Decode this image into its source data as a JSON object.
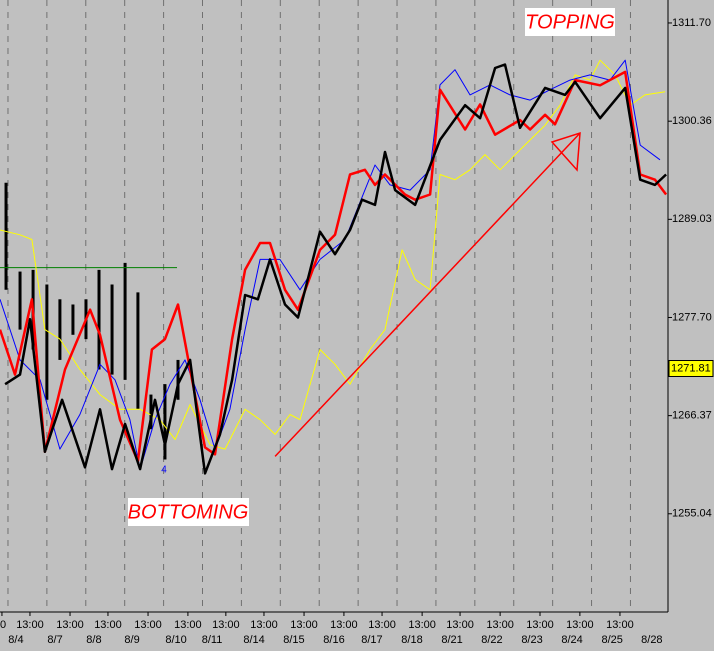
{
  "chart_data": {
    "type": "line",
    "annotations": [
      "TOPPING",
      "BOTTOMING"
    ],
    "marker_label": "4",
    "last_price": 1271.81,
    "xlim": [
      -0.41,
      33.93
    ],
    "ylim": [
      1243.7,
      1314.35
    ],
    "yticks": [
      {
        "value": 1311.7,
        "label": "1311.70"
      },
      {
        "value": 1300.36,
        "label": "1300.36"
      },
      {
        "value": 1289.03,
        "label": "1289.03"
      },
      {
        "value": 1277.7,
        "label": "1277.70"
      },
      {
        "value": 1266.37,
        "label": "1266.37"
      },
      {
        "value": 1255.04,
        "label": "1255.04"
      }
    ],
    "xticks": [
      {
        "value": -0.31,
        "label": "0"
      },
      {
        "value": 1.13,
        "label": "13:00"
      },
      {
        "value": 3.19,
        "label": "13:00"
      },
      {
        "value": 5.14,
        "label": "13:00"
      },
      {
        "value": 7.2,
        "label": "13:00"
      },
      {
        "value": 9.25,
        "label": "13:00"
      },
      {
        "value": 11.2,
        "label": "13:00"
      },
      {
        "value": 13.16,
        "label": "13:00"
      },
      {
        "value": 15.22,
        "label": "13:00"
      },
      {
        "value": 17.27,
        "label": "13:00"
      },
      {
        "value": 19.23,
        "label": "13:00"
      },
      {
        "value": 21.29,
        "label": "13:00"
      },
      {
        "value": 23.24,
        "label": "13:00"
      },
      {
        "value": 25.3,
        "label": "13:00"
      },
      {
        "value": 27.35,
        "label": "13:00"
      },
      {
        "value": 29.4,
        "label": "13:00"
      },
      {
        "value": 31.46,
        "label": "13:00"
      }
    ],
    "date_ticks": [
      {
        "value": 0.41,
        "label": "8/4"
      },
      {
        "value": 2.42,
        "label": "8/7"
      },
      {
        "value": 4.42,
        "label": "8/8"
      },
      {
        "value": 6.38,
        "label": "8/9"
      },
      {
        "value": 8.64,
        "label": "8/10"
      },
      {
        "value": 10.49,
        "label": "8/11"
      },
      {
        "value": 12.65,
        "label": "8/14"
      },
      {
        "value": 14.7,
        "label": "8/15"
      },
      {
        "value": 16.76,
        "label": "8/16"
      },
      {
        "value": 18.71,
        "label": "8/17"
      },
      {
        "value": 20.77,
        "label": "8/18"
      },
      {
        "value": 22.83,
        "label": "8/21"
      },
      {
        "value": 24.88,
        "label": "8/22"
      },
      {
        "value": 26.94,
        "label": "8/23"
      },
      {
        "value": 29.0,
        "label": "8/24"
      },
      {
        "value": 31.06,
        "label": "8/25"
      },
      {
        "value": 33.1,
        "label": "8/28"
      }
    ],
    "xgrid": [
      0,
      2,
      4,
      6,
      8,
      10,
      12,
      14,
      16,
      18,
      20,
      22,
      24,
      26,
      28,
      30,
      32
    ],
    "series": [
      {
        "color": "#ffff00",
        "line_width": 1,
        "x": [
          -0.41,
          0.62,
          1.23,
          1.9,
          2.67,
          3.7,
          4.73,
          5.76,
          6.79,
          7.81,
          8.59,
          9.36,
          10.39,
          11.16,
          12.19,
          12.96,
          13.73,
          14.5,
          15.01,
          16.04,
          16.81,
          17.58,
          18.61,
          19.38,
          20.26,
          20.93,
          21.7,
          22.21,
          22.98,
          23.75,
          24.52,
          25.3,
          26.32,
          27.61,
          28.38,
          29.16,
          29.92,
          30.44,
          31.21,
          31.98,
          32.75,
          33.78
        ],
        "values": [
          1287.8,
          1287.25,
          1286.7,
          1276.3,
          1275.2,
          1271.7,
          1268.8,
          1267.1,
          1267.1,
          1265.9,
          1263.6,
          1267.65,
          1263.0,
          1262.5,
          1267.1,
          1265.9,
          1264.2,
          1266.5,
          1265.9,
          1274.0,
          1272.3,
          1270.0,
          1274.0,
          1276.3,
          1285.5,
          1282.1,
          1280.9,
          1294.2,
          1293.6,
          1294.75,
          1296.5,
          1294.75,
          1297.05,
          1299.9,
          1302.2,
          1305.7,
          1305.1,
          1307.4,
          1305.7,
          1302.2,
          1303.4,
          1303.75
        ]
      },
      {
        "color": "#0000ff",
        "line_width": 1,
        "x": [
          -0.41,
          0.62,
          1.65,
          2.67,
          3.7,
          4.73,
          5.5,
          6.27,
          6.79,
          7.56,
          8.33,
          9.1,
          9.87,
          10.64,
          11.41,
          12.19,
          12.96,
          13.98,
          15.01,
          16.04,
          17.33,
          18.35,
          18.87,
          19.64,
          20.67,
          21.7,
          22.21,
          22.98,
          23.75,
          24.78,
          25.81,
          26.84,
          27.87,
          28.89,
          29.92,
          30.95,
          31.73,
          32.5,
          33.52
        ],
        "values": [
          1279.8,
          1272.8,
          1270.5,
          1262.5,
          1266.5,
          1272.3,
          1270.5,
          1265.9,
          1260.2,
          1265.9,
          1270.0,
          1272.8,
          1268.2,
          1262.5,
          1267.1,
          1276.3,
          1284.4,
          1284.4,
          1280.9,
          1284.4,
          1286.7,
          1292.4,
          1295.3,
          1293.0,
          1292.4,
          1294.75,
          1304.55,
          1306.3,
          1303.4,
          1304.55,
          1303.4,
          1302.8,
          1304.0,
          1305.1,
          1305.7,
          1305.1,
          1307.4,
          1297.6,
          1295.9
        ]
      },
      {
        "color": "#ff0000",
        "line_width": 2.5,
        "x": [
          -0.41,
          0.36,
          1.23,
          1.9,
          2.93,
          4.22,
          4.73,
          5.76,
          6.68,
          7.4,
          8.07,
          8.74,
          9.36,
          10.13,
          10.64,
          11.52,
          12.19,
          12.96,
          13.47,
          14.24,
          14.91,
          16.04,
          16.81,
          17.58,
          18.35,
          18.87,
          19.38,
          20.41,
          20.93,
          21.7,
          22.21,
          23.5,
          24.27,
          25.04,
          26.32,
          26.84,
          27.61,
          28.12,
          29.16,
          30.44,
          31.73,
          32.5,
          33.26,
          33.83
        ],
        "values": [
          1276.3,
          1271.1,
          1279.8,
          1262.2,
          1271.7,
          1278.6,
          1275.7,
          1265.9,
          1261.1,
          1274.0,
          1275.2,
          1279.2,
          1271.7,
          1262.7,
          1261.9,
          1275.2,
          1283.2,
          1286.3,
          1286.3,
          1280.9,
          1278.6,
          1285.5,
          1287.25,
          1294.2,
          1294.75,
          1293.0,
          1294.2,
          1291.9,
          1291.3,
          1291.9,
          1304.0,
          1299.4,
          1302.3,
          1298.8,
          1300.5,
          1299.4,
          1301.1,
          1300.0,
          1305.1,
          1304.5,
          1306.05,
          1294.2,
          1293.6,
          1291.9
        ]
      },
      {
        "color": "#000000",
        "line_width": 2.5,
        "x": [
          -0.15,
          0.62,
          1.13,
          1.9,
          2.78,
          3.96,
          4.73,
          5.35,
          6.02,
          6.79,
          7.56,
          8.07,
          8.74,
          9.36,
          10.13,
          10.9,
          11.52,
          12.19,
          12.85,
          13.47,
          14.24,
          14.91,
          16.04,
          16.81,
          17.58,
          18.2,
          18.87,
          19.38,
          19.9,
          20.93,
          22.21,
          23.5,
          24.27,
          25.04,
          25.55,
          26.32,
          27.61,
          28.64,
          29.16,
          30.44,
          31.73,
          32.5,
          33.26,
          33.83
        ],
        "values": [
          1270.0,
          1271.1,
          1277.5,
          1262.2,
          1268.2,
          1260.4,
          1267.1,
          1260.2,
          1265.4,
          1260.2,
          1268.2,
          1263.0,
          1270.0,
          1272.8,
          1259.7,
          1264.2,
          1270.5,
          1280.3,
          1279.8,
          1284.4,
          1279.2,
          1277.7,
          1287.6,
          1285.0,
          1287.8,
          1291.3,
          1290.7,
          1296.8,
          1292.4,
          1290.7,
          1298.2,
          1302.2,
          1300.7,
          1306.5,
          1306.9,
          1299.6,
          1304.2,
          1303.4,
          1304.9,
          1300.7,
          1304.2,
          1293.6,
          1293.0,
          1294.2
        ]
      }
    ],
    "ohlc": {
      "color": "#000000",
      "x": [
        -0.1,
        0.62,
        1.29,
        2.0,
        2.67,
        3.34,
        4.01,
        4.68,
        5.35,
        6.02,
        6.68,
        7.35,
        8.07,
        8.74
      ],
      "high": [
        1293.25,
        1283.0,
        1283.2,
        1281.5,
        1279.8,
        1279.2,
        1279.8,
        1283.2,
        1281.5,
        1284.0,
        1280.6,
        1268.8,
        1270.0,
        1272.8
      ],
      "low": [
        1280.9,
        1276.3,
        1274.0,
        1268.2,
        1272.8,
        1275.7,
        1275.2,
        1271.7,
        1271.1,
        1270.5,
        1267.1,
        1264.8,
        1261.3,
        1268.2
      ]
    },
    "hline": {
      "color": "#008000",
      "y": 1283.45,
      "x": [
        -0.41,
        8.69
      ]
    },
    "trendline": {
      "color": "#ff0000",
      "x": [
        13.73,
        29.41
      ],
      "values": [
        1261.66,
        1299.0
      ]
    }
  }
}
